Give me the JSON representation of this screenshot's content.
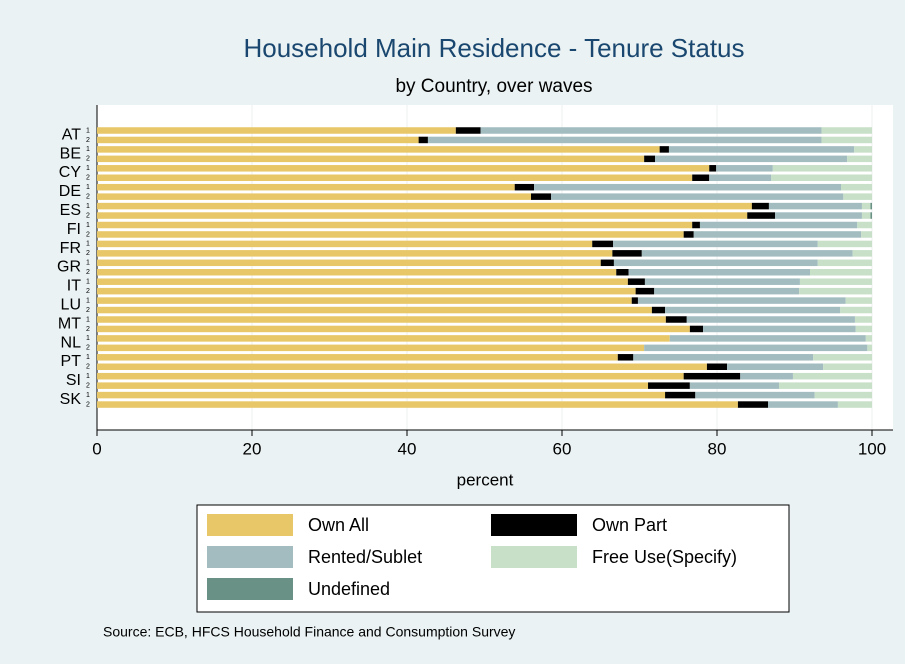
{
  "chart_data": {
    "type": "stacked-bar-horizontal",
    "title": "Household Main Residence - Tenure Status",
    "subtitle": "by Country, over waves",
    "x_label": "percent",
    "source": "Source:  ECB, HFCS Household Finance and Consumption Survey",
    "groups": [
      "AT",
      "BE",
      "CY",
      "DE",
      "ES",
      "FI",
      "FR",
      "GR",
      "IT",
      "LU",
      "MT",
      "NL",
      "PT",
      "SI",
      "SK"
    ],
    "categories": [
      "1",
      "2",
      "1",
      "2",
      "1",
      "2",
      "1",
      "2",
      "1",
      "2",
      "1",
      "2",
      "1",
      "2",
      "1",
      "2",
      "1",
      "2",
      "1",
      "2",
      "1",
      "2",
      "1",
      "2",
      "1",
      "2",
      "1",
      "2",
      "1",
      "2"
    ],
    "xlim": [
      0,
      100
    ],
    "xticks": [
      0,
      20,
      40,
      60,
      80,
      100
    ],
    "grid": true,
    "series": [
      {
        "name": "Own All",
        "color": "#e8c768",
        "values": [
          46.3,
          41.5,
          72.6,
          70.6,
          79,
          76.8,
          53.9,
          56,
          84.5,
          83.9,
          76.8,
          75.7,
          63.9,
          66.5,
          65,
          67,
          68.5,
          69.5,
          69,
          71.6,
          73.4,
          76.5,
          73.9,
          70.6,
          67.2,
          78.7,
          75.7,
          71.1,
          73.3,
          82.7
        ]
      },
      {
        "name": "Own Part",
        "color": "#000000",
        "values": [
          3.2,
          1.2,
          1.2,
          1.4,
          0.9,
          2.2,
          2.5,
          2.6,
          2.2,
          3.6,
          1,
          1.3,
          2.7,
          3.8,
          1.7,
          1.6,
          2.2,
          2.4,
          0.8,
          1.7,
          2.7,
          1.7,
          0,
          0,
          2,
          2.6,
          7.3,
          5.4,
          3.9,
          3.9
        ]
      },
      {
        "name": "Rented/Sublet",
        "color": "#a2bcc0",
        "values": [
          44,
          50.8,
          23.9,
          24.8,
          7.3,
          8,
          39.6,
          37.7,
          12,
          11.2,
          20.3,
          21.6,
          26.4,
          27.2,
          26.3,
          23.4,
          20,
          18.7,
          26.8,
          22.6,
          21.7,
          19.7,
          25.3,
          28.8,
          23.2,
          12.4,
          6.8,
          11.5,
          15.4,
          9
        ]
      },
      {
        "name": "Free Use(Specify)",
        "color": "#c8dfc8",
        "values": [
          6.5,
          6.5,
          2.3,
          3.2,
          12.8,
          13,
          4,
          3.7,
          1.1,
          1.1,
          1.9,
          1.4,
          7,
          2.5,
          7,
          8,
          9.3,
          9.4,
          3.4,
          4.1,
          2.2,
          2.1,
          0.8,
          0.6,
          7.6,
          6.3,
          10.2,
          12,
          7.4,
          4.4
        ]
      },
      {
        "name": "Undefined",
        "color": "#6a9186",
        "values": [
          0,
          0,
          0,
          0,
          0,
          0,
          0,
          0,
          0.2,
          0.2,
          0,
          0,
          0,
          0,
          0,
          0,
          0,
          0,
          0,
          0,
          0,
          0,
          0,
          0,
          0,
          0,
          0,
          0,
          0,
          0
        ]
      }
    ]
  }
}
